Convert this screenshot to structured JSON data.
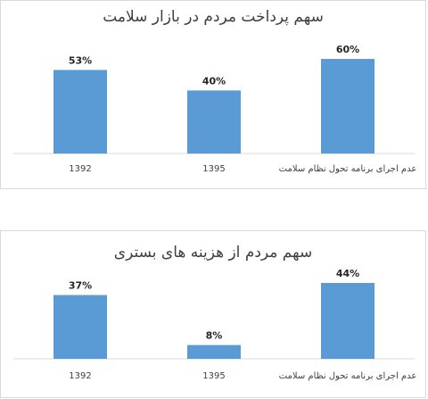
{
  "chart_data": [
    {
      "type": "bar",
      "title": "سهم پرداخت مردم در بازار سلامت",
      "categories": [
        "1392",
        "1395",
        "عدم اجرای برنامه تحول نظام سلامت"
      ],
      "values": [
        53,
        40,
        60
      ],
      "value_labels": [
        "53%",
        "40%",
        "60%"
      ],
      "ylim": [
        0,
        100
      ],
      "grid": false,
      "color": "#5b9bd5"
    },
    {
      "type": "bar",
      "title": "سهم مردم از هزینه های بستری",
      "categories": [
        "1392",
        "1395",
        "عدم اجرای برنامه تحول نظام سلامت"
      ],
      "values": [
        37,
        8,
        44
      ],
      "value_labels": [
        "37%",
        "8%",
        "44%"
      ],
      "ylim": [
        0,
        100
      ],
      "grid": false,
      "color": "#5b9bd5"
    }
  ]
}
